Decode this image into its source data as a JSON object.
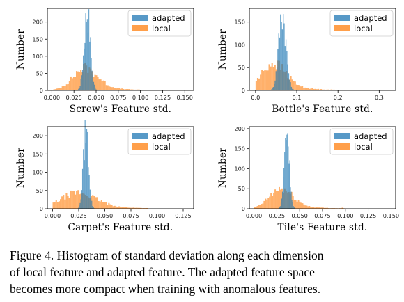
{
  "chart_data": [
    {
      "type": "bar",
      "xlabel": "Screw's Feature std.",
      "ylabel": "Number",
      "xlim": [
        -0.005,
        0.16
      ],
      "ylim": [
        0,
        240
      ],
      "xticks": [
        0.0,
        0.025,
        0.05,
        0.075,
        0.1,
        0.125,
        0.15
      ],
      "xtick_labels": [
        "0.000",
        "0.025",
        "0.050",
        "0.075",
        "0.100",
        "0.125",
        "0.150"
      ],
      "yticks": [
        0,
        50,
        100,
        150,
        200
      ],
      "ytick_labels": [
        "0",
        "50",
        "100",
        "150",
        "200"
      ],
      "legend_position": "top-right",
      "grid": false,
      "series": [
        {
          "name": "adapted",
          "color": "#1f77b4",
          "center": 0.04,
          "spread": 0.0035,
          "peak": 230,
          "bin_width": 0.0009
        },
        {
          "name": "local",
          "color": "#ff7f0e",
          "center": 0.038,
          "spread": 0.014,
          "peak": 60,
          "bin_width": 0.0016,
          "range": [
            0.0,
            0.1
          ]
        }
      ]
    },
    {
      "type": "bar",
      "xlabel": "Bottle's Feature std.",
      "ylabel": "Number",
      "xlim": [
        -0.015,
        0.34
      ],
      "ylim": [
        0,
        180
      ],
      "xticks": [
        0.0,
        0.1,
        0.2,
        0.3
      ],
      "xtick_labels": [
        "0.0",
        "0.1",
        "0.2",
        "0.3"
      ],
      "yticks": [
        0,
        50,
        100,
        150
      ],
      "ytick_labels": [
        "0",
        "50",
        "100",
        "150"
      ],
      "legend_position": "top-right",
      "grid": false,
      "series": [
        {
          "name": "adapted",
          "color": "#1f77b4",
          "center": 0.065,
          "spread": 0.009,
          "peak": 170,
          "bin_width": 0.0022
        },
        {
          "name": "local",
          "color": "#ff7f0e",
          "center": 0.045,
          "spread": 0.03,
          "peak": 55,
          "bin_width": 0.0035,
          "range": [
            0.0,
            0.2
          ]
        }
      ]
    },
    {
      "type": "bar",
      "xlabel": "Carpet's Feature std.",
      "ylabel": "Number",
      "xlim": [
        -0.005,
        0.135
      ],
      "ylim": [
        0,
        225
      ],
      "xticks": [
        0.0,
        0.025,
        0.05,
        0.075,
        0.1,
        0.125
      ],
      "xtick_labels": [
        "0.000",
        "0.025",
        "0.050",
        "0.075",
        "0.100",
        "0.125"
      ],
      "yticks": [
        0,
        50,
        100,
        150,
        200
      ],
      "ytick_labels": [
        "0",
        "50",
        "100",
        "150",
        "200"
      ],
      "legend_position": "top-right",
      "grid": false,
      "series": [
        {
          "name": "adapted",
          "color": "#1f77b4",
          "center": 0.032,
          "spread": 0.0025,
          "peak": 218,
          "bin_width": 0.0008
        },
        {
          "name": "local",
          "color": "#ff7f0e",
          "center": 0.025,
          "spread": 0.017,
          "peak": 40,
          "bin_width": 0.0014,
          "range": [
            0.0,
            0.09
          ]
        }
      ]
    },
    {
      "type": "bar",
      "xlabel": "Tile's Feature std.",
      "ylabel": "Number",
      "xlim": [
        -0.005,
        0.155
      ],
      "ylim": [
        0,
        205
      ],
      "xticks": [
        0.0,
        0.025,
        0.05,
        0.075,
        0.1,
        0.125,
        0.15
      ],
      "xtick_labels": [
        "0.000",
        "0.025",
        "0.050",
        "0.075",
        "0.100",
        "0.125",
        "0.150"
      ],
      "yticks": [
        0,
        50,
        100,
        150,
        200
      ],
      "ytick_labels": [
        "0",
        "50",
        "100",
        "150",
        "200"
      ],
      "legend_position": "top-right",
      "grid": false,
      "series": [
        {
          "name": "adapted",
          "color": "#1f77b4",
          "center": 0.036,
          "spread": 0.0028,
          "peak": 197,
          "bin_width": 0.0008
        },
        {
          "name": "local",
          "color": "#ff7f0e",
          "center": 0.03,
          "spread": 0.013,
          "peak": 45,
          "bin_width": 0.0015,
          "range": [
            0.0,
            0.1
          ]
        }
      ]
    }
  ],
  "caption": {
    "line1": "Figure 4.  Histogram of standard deviation along each dimension",
    "line2": "of local feature and adapted feature.  The adapted feature space",
    "line3": "becomes more compact when training with anomalous features."
  }
}
